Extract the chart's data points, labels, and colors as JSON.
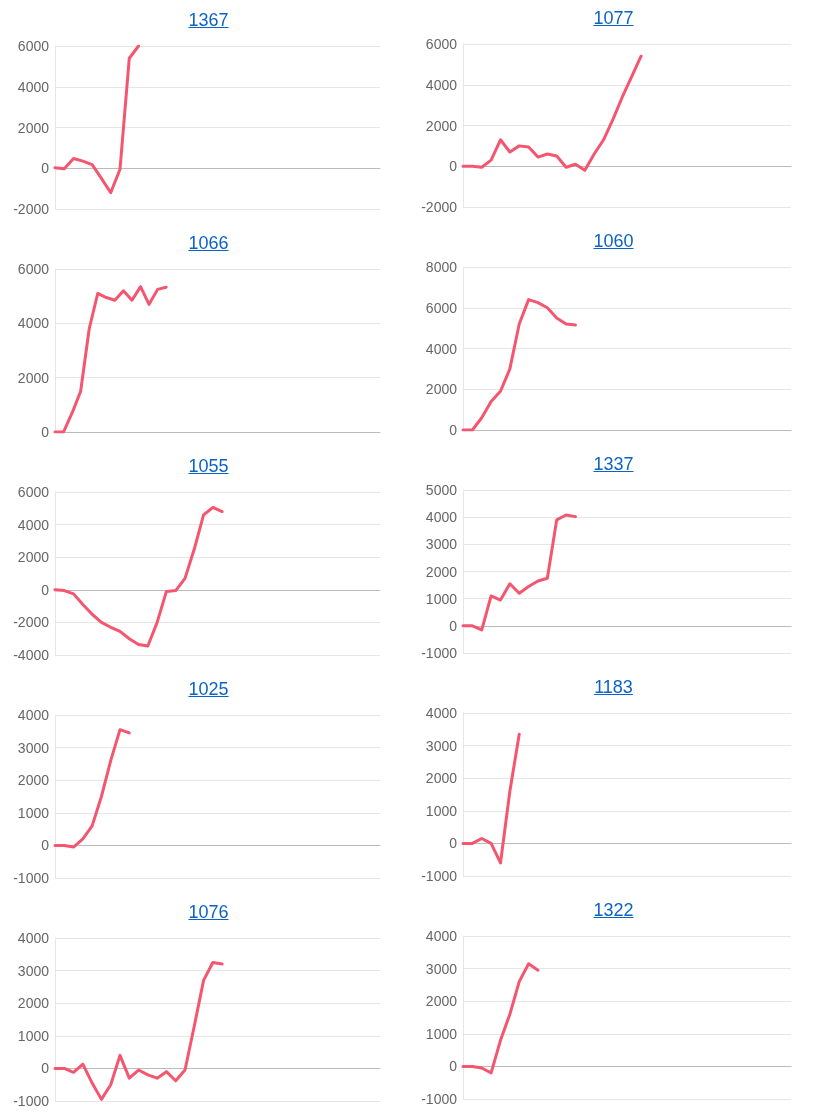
{
  "chart_data": [
    {
      "type": "line",
      "title": "1367",
      "categories": [
        null,
        null,
        null,
        null,
        null,
        null,
        null,
        null,
        null,
        null,
        null,
        null,
        null,
        null,
        null,
        null,
        null,
        null,
        null,
        null,
        null,
        null,
        null,
        null,
        null,
        null,
        null,
        null,
        null,
        null,
        null,
        null,
        null,
        null,
        null,
        null
      ],
      "series": [
        {
          "color": "#f5566f",
          "values": [
            30,
            -30,
            480,
            350,
            180,
            -500,
            -1200,
            -50,
            5400,
            6000,
            null,
            null,
            null,
            null,
            null,
            null,
            null,
            null,
            null,
            null,
            null,
            null,
            null,
            null,
            null,
            null,
            null,
            null,
            null,
            null,
            null,
            null,
            null,
            null,
            null,
            null
          ]
        }
      ],
      "ylim": [
        -2000,
        6000
      ],
      "yticks": [
        -2000,
        0,
        2000,
        4000,
        6000
      ],
      "grid": "y",
      "marker": "none",
      "line_style": "solid"
    },
    {
      "type": "line",
      "title": "1077",
      "categories": [
        null,
        null,
        null,
        null,
        null,
        null,
        null,
        null,
        null,
        null,
        null,
        null,
        null,
        null,
        null,
        null,
        null,
        null,
        null,
        null,
        null,
        null,
        null,
        null,
        null,
        null,
        null,
        null,
        null,
        null,
        null,
        null,
        null,
        null,
        null,
        null
      ],
      "series": [
        {
          "color": "#f5566f",
          "values": [
            0,
            0,
            -50,
            300,
            1300,
            700,
            1000,
            950,
            450,
            600,
            500,
            -50,
            100,
            -200,
            600,
            1300,
            2300,
            3400,
            4400,
            5400,
            null,
            null,
            null,
            null,
            null,
            null,
            null,
            null,
            null,
            null,
            null,
            null,
            null,
            null,
            null,
            null
          ]
        }
      ],
      "ylim": [
        -2000,
        6000
      ],
      "yticks": [
        -2000,
        0,
        2000,
        4000,
        6000
      ],
      "grid": "y",
      "marker": "none",
      "line_style": "solid"
    },
    {
      "type": "line",
      "title": "1066",
      "categories": [
        null,
        null,
        null,
        null,
        null,
        null,
        null,
        null,
        null,
        null,
        null,
        null,
        null,
        null,
        null,
        null,
        null,
        null,
        null,
        null,
        null,
        null,
        null,
        null,
        null,
        null,
        null,
        null,
        null,
        null,
        null,
        null,
        null,
        null,
        null,
        null,
        null,
        null,
        null
      ],
      "series": [
        {
          "color": "#f5566f",
          "values": [
            0,
            0,
            700,
            1500,
            3800,
            5100,
            4950,
            4850,
            5200,
            4850,
            5350,
            4700,
            5250,
            5330,
            null,
            null,
            null,
            null,
            null,
            null,
            null,
            null,
            null,
            null,
            null,
            null,
            null,
            null,
            null,
            null,
            null,
            null,
            null,
            null,
            null,
            null,
            null,
            null,
            null
          ]
        }
      ],
      "ylim": [
        0,
        6000
      ],
      "yticks": [
        0,
        2000,
        4000,
        6000
      ],
      "grid": "y",
      "marker": "none",
      "line_style": "solid"
    },
    {
      "type": "line",
      "title": "1060",
      "categories": [
        null,
        null,
        null,
        null,
        null,
        null,
        null,
        null,
        null,
        null,
        null,
        null,
        null,
        null,
        null,
        null,
        null,
        null,
        null,
        null,
        null,
        null,
        null,
        null,
        null,
        null,
        null,
        null,
        null,
        null,
        null,
        null,
        null,
        null,
        null,
        null
      ],
      "series": [
        {
          "color": "#f5566f",
          "values": [
            0,
            0,
            600,
            1400,
            1900,
            3000,
            5200,
            6400,
            6250,
            6000,
            5500,
            5200,
            5150,
            null,
            null,
            null,
            null,
            null,
            null,
            null,
            null,
            null,
            null,
            null,
            null,
            null,
            null,
            null,
            null,
            null,
            null,
            null,
            null,
            null,
            null,
            null
          ]
        }
      ],
      "ylim": [
        0,
        8000
      ],
      "yticks": [
        0,
        2000,
        4000,
        6000,
        8000
      ],
      "grid": "y",
      "marker": "none",
      "line_style": "solid"
    },
    {
      "type": "line",
      "title": "1055",
      "categories": [
        null,
        null,
        null,
        null,
        null,
        null,
        null,
        null,
        null,
        null,
        null,
        null,
        null,
        null,
        null,
        null,
        null,
        null,
        null,
        null,
        null,
        null,
        null,
        null,
        null,
        null,
        null,
        null,
        null,
        null,
        null,
        null,
        null,
        null,
        null,
        null
      ],
      "series": [
        {
          "color": "#f5566f",
          "values": [
            0,
            -50,
            -250,
            -900,
            -1500,
            -2000,
            -2300,
            -2550,
            -3000,
            -3350,
            -3450,
            -2000,
            -100,
            -50,
            700,
            2500,
            4600,
            5050,
            4800,
            null,
            null,
            null,
            null,
            null,
            null,
            null,
            null,
            null,
            null,
            null,
            null,
            null,
            null,
            null,
            null,
            null
          ]
        }
      ],
      "ylim": [
        -4000,
        6000
      ],
      "yticks": [
        -4000,
        -2000,
        0,
        2000,
        4000,
        6000
      ],
      "grid": "y",
      "marker": "none",
      "line_style": "solid"
    },
    {
      "type": "line",
      "title": "1337",
      "categories": [
        null,
        null,
        null,
        null,
        null,
        null,
        null,
        null,
        null,
        null,
        null,
        null,
        null,
        null,
        null,
        null,
        null,
        null,
        null,
        null,
        null,
        null,
        null,
        null,
        null,
        null,
        null,
        null,
        null,
        null,
        null,
        null,
        null,
        null,
        null,
        null
      ],
      "series": [
        {
          "color": "#f5566f",
          "values": [
            0,
            0,
            -150,
            1100,
            950,
            1550,
            1200,
            1450,
            1650,
            1750,
            3900,
            4080,
            4020,
            null,
            null,
            null,
            null,
            null,
            null,
            null,
            null,
            null,
            null,
            null,
            null,
            null,
            null,
            null,
            null,
            null,
            null,
            null,
            null,
            null,
            null,
            null
          ]
        }
      ],
      "ylim": [
        -1000,
        5000
      ],
      "yticks": [
        -1000,
        0,
        1000,
        2000,
        3000,
        4000,
        5000
      ],
      "grid": "y",
      "marker": "none",
      "line_style": "solid"
    },
    {
      "type": "line",
      "title": "1025",
      "categories": [
        null,
        null,
        null,
        null,
        null,
        null,
        null,
        null,
        null,
        null,
        null,
        null,
        null,
        null,
        null,
        null,
        null,
        null,
        null,
        null,
        null,
        null,
        null,
        null,
        null,
        null,
        null,
        null,
        null,
        null,
        null,
        null,
        null,
        null,
        null,
        null
      ],
      "series": [
        {
          "color": "#f5566f",
          "values": [
            0,
            0,
            -50,
            200,
            600,
            1500,
            2600,
            3550,
            3450,
            null,
            null,
            null,
            null,
            null,
            null,
            null,
            null,
            null,
            null,
            null,
            null,
            null,
            null,
            null,
            null,
            null,
            null,
            null,
            null,
            null,
            null,
            null,
            null,
            null,
            null,
            null
          ]
        }
      ],
      "ylim": [
        -1000,
        4000
      ],
      "yticks": [
        -1000,
        0,
        1000,
        2000,
        3000,
        4000
      ],
      "grid": "y",
      "marker": "none",
      "line_style": "solid"
    },
    {
      "type": "line",
      "title": "1183",
      "categories": [
        null,
        null,
        null,
        null,
        null,
        null,
        null,
        null,
        null,
        null,
        null,
        null,
        null,
        null,
        null,
        null,
        null,
        null,
        null,
        null,
        null,
        null,
        null,
        null,
        null,
        null,
        null,
        null,
        null,
        null,
        null,
        null,
        null,
        null,
        null,
        null
      ],
      "series": [
        {
          "color": "#f5566f",
          "values": [
            0,
            0,
            150,
            0,
            -600,
            1600,
            3350,
            null,
            null,
            null,
            null,
            null,
            null,
            null,
            null,
            null,
            null,
            null,
            null,
            null,
            null,
            null,
            null,
            null,
            null,
            null,
            null,
            null,
            null,
            null,
            null,
            null,
            null,
            null,
            null,
            null
          ]
        }
      ],
      "ylim": [
        -1000,
        4000
      ],
      "yticks": [
        -1000,
        0,
        1000,
        2000,
        3000,
        4000
      ],
      "grid": "y",
      "marker": "none",
      "line_style": "solid"
    },
    {
      "type": "line",
      "title": "1076",
      "categories": [
        null,
        null,
        null,
        null,
        null,
        null,
        null,
        null,
        null,
        null,
        null,
        null,
        null,
        null,
        null,
        null,
        null,
        null,
        null,
        null,
        null,
        null,
        null,
        null,
        null,
        null,
        null,
        null,
        null,
        null,
        null,
        null,
        null,
        null,
        null,
        null
      ],
      "series": [
        {
          "color": "#f5566f",
          "values": [
            0,
            0,
            -120,
            130,
            -450,
            -950,
            -500,
            400,
            -300,
            -50,
            -200,
            -300,
            -100,
            -380,
            -50,
            1300,
            2700,
            3250,
            3200,
            null,
            null,
            null,
            null,
            null,
            null,
            null,
            null,
            null,
            null,
            null,
            null,
            null,
            null,
            null,
            null,
            null
          ]
        }
      ],
      "ylim": [
        -1000,
        4000
      ],
      "yticks": [
        -1000,
        0,
        1000,
        2000,
        3000,
        4000
      ],
      "grid": "y",
      "marker": "none",
      "line_style": "solid"
    },
    {
      "type": "line",
      "title": "1322",
      "categories": [
        null,
        null,
        null,
        null,
        null,
        null,
        null,
        null,
        null,
        null,
        null,
        null,
        null,
        null,
        null,
        null,
        null,
        null,
        null,
        null,
        null,
        null,
        null,
        null,
        null,
        null,
        null,
        null,
        null,
        null,
        null,
        null,
        null,
        null,
        null,
        null
      ],
      "series": [
        {
          "color": "#f5566f",
          "values": [
            0,
            0,
            -50,
            -200,
            800,
            1600,
            2600,
            3150,
            2950,
            null,
            null,
            null,
            null,
            null,
            null,
            null,
            null,
            null,
            null,
            null,
            null,
            null,
            null,
            null,
            null,
            null,
            null,
            null,
            null,
            null,
            null,
            null,
            null,
            null,
            null,
            null
          ]
        }
      ],
      "ylim": [
        -1000,
        4000
      ],
      "yticks": [
        -1000,
        0,
        1000,
        2000,
        3000,
        4000
      ],
      "grid": "y",
      "marker": "none",
      "line_style": "solid"
    }
  ]
}
